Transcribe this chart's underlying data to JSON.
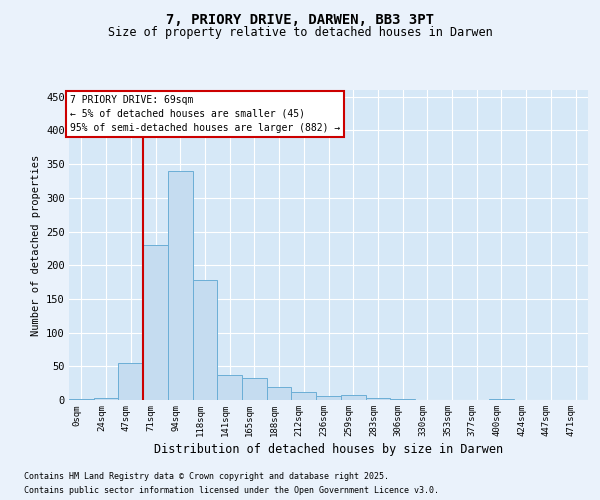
{
  "title_line1": "7, PRIORY DRIVE, DARWEN, BB3 3PT",
  "title_line2": "Size of property relative to detached houses in Darwen",
  "xlabel": "Distribution of detached houses by size in Darwen",
  "ylabel": "Number of detached properties",
  "footnote1": "Contains HM Land Registry data © Crown copyright and database right 2025.",
  "footnote2": "Contains public sector information licensed under the Open Government Licence v3.0.",
  "annotation_line1": "7 PRIORY DRIVE: 69sqm",
  "annotation_line2": "← 5% of detached houses are smaller (45)",
  "annotation_line3": "95% of semi-detached houses are larger (882) →",
  "bar_values": [
    2,
    3,
    55,
    230,
    340,
    178,
    37,
    33,
    20,
    12,
    6,
    7,
    3,
    1,
    0,
    0,
    0,
    1,
    0,
    0,
    0
  ],
  "bin_labels": [
    "0sqm",
    "24sqm",
    "47sqm",
    "71sqm",
    "94sqm",
    "118sqm",
    "141sqm",
    "165sqm",
    "188sqm",
    "212sqm",
    "236sqm",
    "259sqm",
    "283sqm",
    "306sqm",
    "330sqm",
    "353sqm",
    "377sqm",
    "400sqm",
    "424sqm",
    "447sqm",
    "471sqm"
  ],
  "bar_color": "#C5DCF0",
  "bar_edge_color": "#6BAED6",
  "bg_color": "#EAF2FB",
  "plot_bg_color": "#D6E8F7",
  "grid_color": "#FFFFFF",
  "vline_color": "#CC0000",
  "annotation_box_edgecolor": "#CC0000",
  "annotation_box_facecolor": "#FFFFFF",
  "ylim": [
    0,
    460
  ],
  "yticks": [
    0,
    50,
    100,
    150,
    200,
    250,
    300,
    350,
    400,
    450
  ],
  "vline_x": 3.0
}
